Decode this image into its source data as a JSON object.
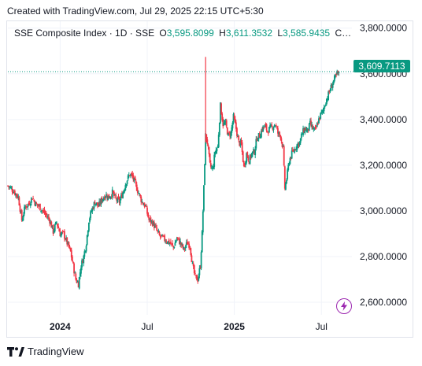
{
  "header": {
    "created_text": "Created with TradingView.com, Jul 29, 2025 22:15 UTC+5:30"
  },
  "legend": {
    "symbol": "SSE Composite Index · 1D · SSE",
    "o_label": "O",
    "o_value": "3,595.8099",
    "h_label": "H",
    "h_value": "3,611.3532",
    "l_label": "L",
    "l_value": "3,585.9435",
    "c_label": "C…"
  },
  "price_tag": "3,609.7113",
  "footer": {
    "brand": "TradingView"
  },
  "icons": {
    "logo": "tradingview-logo-icon",
    "lightning": "lightning-icon"
  },
  "colors": {
    "up": "#089981",
    "down": "#f23645",
    "grid": "#f0f3fa",
    "axis_text": "#131722",
    "accent_purple": "#9c27b0"
  },
  "chart_data": {
    "type": "candlestick",
    "y_axis_labels": [
      "3,800.0000",
      "3,600.0000",
      "3,400.0000",
      "3,200.0000",
      "3,000.0000",
      "2,800.0000",
      "2,600.0000"
    ],
    "y_axis_values": [
      3800,
      3600,
      3400,
      3200,
      3000,
      2800,
      2600
    ],
    "ylim": [
      2545,
      3830
    ],
    "x_axis_labels": [
      {
        "label": "2024",
        "t": 6,
        "bold": true
      },
      {
        "label": "Jul",
        "t": 16,
        "bold": false
      },
      {
        "label": "2025",
        "t": 26,
        "bold": true
      },
      {
        "label": "Jul",
        "t": 36,
        "bold": false
      }
    ],
    "xlim": [
      0,
      39.5
    ],
    "last_price": 3609.7113,
    "series": [
      {
        "name": "close",
        "points": [
          [
            0,
            3110
          ],
          [
            0.6,
            3090
          ],
          [
            1.2,
            3060
          ],
          [
            1.6,
            2960
          ],
          [
            2.0,
            3020
          ],
          [
            2.4,
            3030
          ],
          [
            2.8,
            3060
          ],
          [
            3.2,
            3030
          ],
          [
            3.6,
            3020
          ],
          [
            4.0,
            3000
          ],
          [
            4.4,
            2980
          ],
          [
            4.8,
            2960
          ],
          [
            5.2,
            2910
          ],
          [
            5.6,
            2950
          ],
          [
            6.0,
            2900
          ],
          [
            6.4,
            2900
          ],
          [
            6.8,
            2860
          ],
          [
            7.2,
            2820
          ],
          [
            7.5,
            2760
          ],
          [
            7.8,
            2700
          ],
          [
            8.1,
            2680
          ],
          [
            8.4,
            2760
          ],
          [
            8.7,
            2800
          ],
          [
            9.0,
            2860
          ],
          [
            9.3,
            2960
          ],
          [
            9.6,
            3000
          ],
          [
            10.0,
            3040
          ],
          [
            10.4,
            3020
          ],
          [
            10.8,
            3050
          ],
          [
            11.2,
            3070
          ],
          [
            11.6,
            3060
          ],
          [
            12.0,
            3080
          ],
          [
            12.4,
            3050
          ],
          [
            12.8,
            3040
          ],
          [
            13.2,
            3080
          ],
          [
            13.6,
            3130
          ],
          [
            14.0,
            3160
          ],
          [
            14.3,
            3150
          ],
          [
            14.6,
            3120
          ],
          [
            15.0,
            3080
          ],
          [
            15.4,
            3040
          ],
          [
            15.8,
            3020
          ],
          [
            16.2,
            2960
          ],
          [
            16.6,
            2950
          ],
          [
            17.0,
            2920
          ],
          [
            17.4,
            2890
          ],
          [
            17.8,
            2880
          ],
          [
            18.2,
            2870
          ],
          [
            18.6,
            2860
          ],
          [
            19.0,
            2840
          ],
          [
            19.4,
            2880
          ],
          [
            19.8,
            2860
          ],
          [
            20.2,
            2830
          ],
          [
            20.6,
            2860
          ],
          [
            20.9,
            2850
          ],
          [
            21.2,
            2760
          ],
          [
            21.5,
            2710
          ],
          [
            21.8,
            2700
          ],
          [
            22.1,
            2760
          ],
          [
            22.3,
            2900
          ],
          [
            22.5,
            3100
          ],
          [
            22.7,
            3330
          ],
          [
            22.9,
            3300
          ],
          [
            23.2,
            3200
          ],
          [
            23.5,
            3180
          ],
          [
            23.8,
            3260
          ],
          [
            24.1,
            3280
          ],
          [
            24.4,
            3460
          ],
          [
            24.7,
            3380
          ],
          [
            25.0,
            3380
          ],
          [
            25.3,
            3330
          ],
          [
            25.6,
            3340
          ],
          [
            25.9,
            3410
          ],
          [
            26.2,
            3360
          ],
          [
            26.5,
            3300
          ],
          [
            26.8,
            3290
          ],
          [
            27.1,
            3190
          ],
          [
            27.4,
            3250
          ],
          [
            27.7,
            3220
          ],
          [
            28.0,
            3250
          ],
          [
            28.3,
            3260
          ],
          [
            28.6,
            3320
          ],
          [
            28.9,
            3330
          ],
          [
            29.2,
            3360
          ],
          [
            29.5,
            3370
          ],
          [
            29.8,
            3350
          ],
          [
            30.1,
            3360
          ],
          [
            30.4,
            3370
          ],
          [
            30.7,
            3380
          ],
          [
            31.0,
            3340
          ],
          [
            31.3,
            3330
          ],
          [
            31.6,
            3270
          ],
          [
            31.8,
            3100
          ],
          [
            32.0,
            3140
          ],
          [
            32.3,
            3220
          ],
          [
            32.6,
            3250
          ],
          [
            32.9,
            3270
          ],
          [
            33.2,
            3290
          ],
          [
            33.5,
            3300
          ],
          [
            33.8,
            3340
          ],
          [
            34.1,
            3360
          ],
          [
            34.4,
            3350
          ],
          [
            34.7,
            3380
          ],
          [
            35.0,
            3360
          ],
          [
            35.3,
            3350
          ],
          [
            35.6,
            3390
          ],
          [
            35.9,
            3420
          ],
          [
            36.2,
            3440
          ],
          [
            36.5,
            3480
          ],
          [
            36.8,
            3510
          ],
          [
            37.1,
            3540
          ],
          [
            37.4,
            3570
          ],
          [
            37.7,
            3590
          ],
          [
            38.0,
            3609.7
          ]
        ]
      }
    ]
  }
}
